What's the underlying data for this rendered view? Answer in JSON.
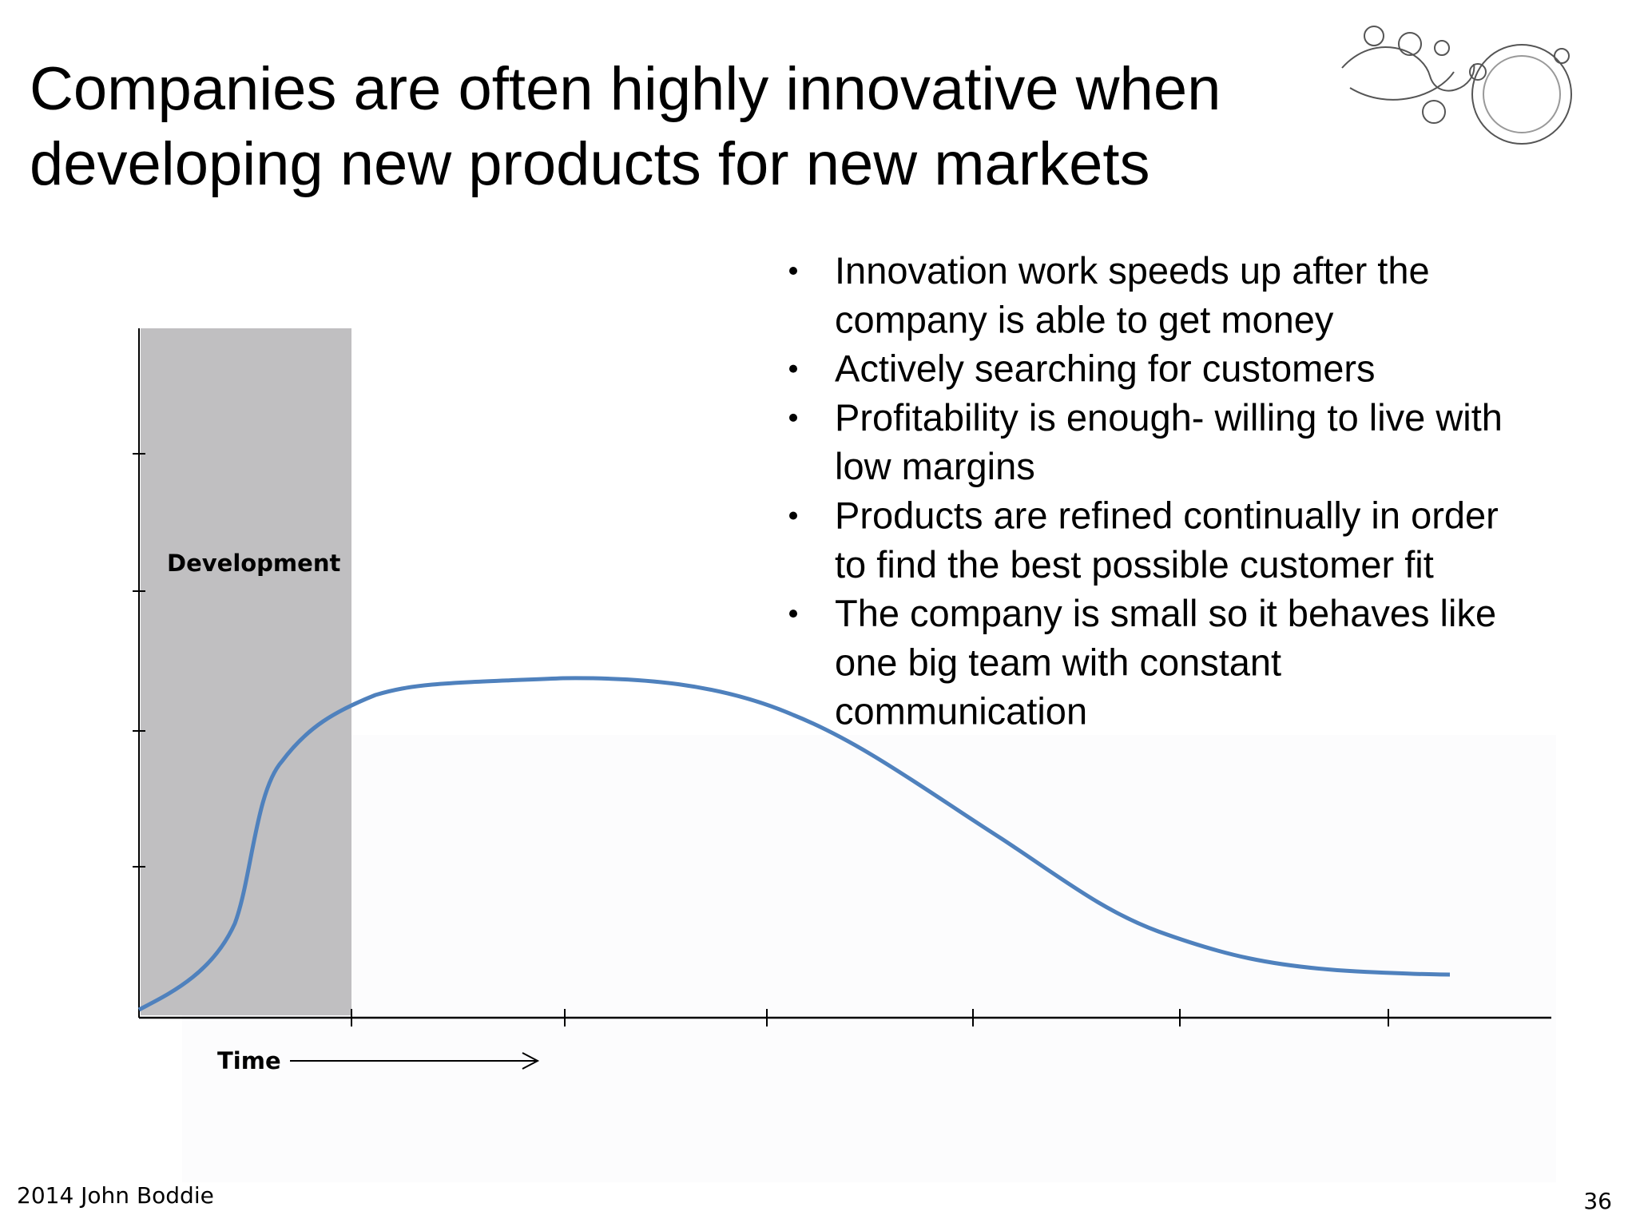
{
  "header": {
    "title": [
      "Companies are often highly innovative when",
      "developing new products for new markets"
    ]
  },
  "bullets": [
    [
      "Innovation work speeds up after the",
      "company is able to get money"
    ],
    [
      "Actively searching for customers"
    ],
    [
      "Profitability is enough- willing to live with",
      "low margins"
    ],
    [
      "Products are refined continually in order",
      "to find the best possible customer fit"
    ],
    [
      "The company is small so it behaves like",
      "one big team with constant",
      "communication"
    ]
  ],
  "diagram": {
    "phase_label": "Development",
    "time_label": "Time"
  },
  "footer": {
    "copyright": "2014 John Boddie",
    "page_number": "36"
  }
}
